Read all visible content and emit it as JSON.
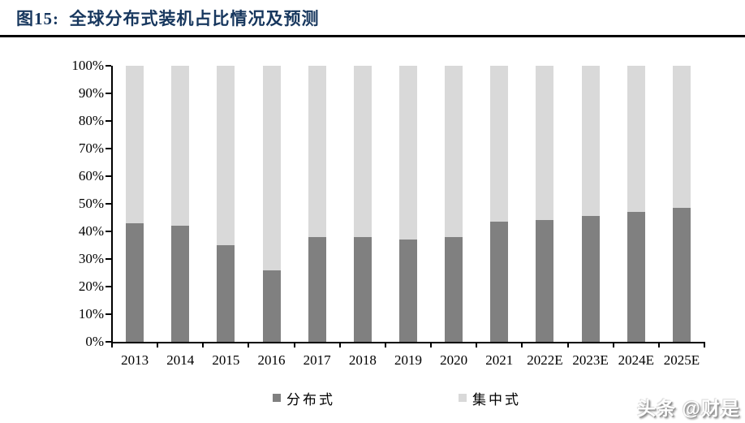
{
  "header": {
    "title": "图15:  全球分布式装机占比情况及预测"
  },
  "chart_data": {
    "type": "bar",
    "subtype": "stacked-100-percent",
    "title": "全球分布式装机占比情况及预测",
    "categories": [
      "2013",
      "2014",
      "2015",
      "2016",
      "2017",
      "2018",
      "2019",
      "2020",
      "2021",
      "2022E",
      "2023E",
      "2024E",
      "2025E"
    ],
    "series": [
      {
        "key": "distributed",
        "name": "分布式",
        "color": "#808080",
        "values": [
          43,
          42,
          35,
          26,
          38,
          38,
          37,
          38,
          43.5,
          44,
          45.5,
          47,
          48.5
        ]
      },
      {
        "key": "centralized",
        "name": "集中式",
        "color": "#d9d9d9",
        "values": [
          57,
          58,
          65,
          74,
          62,
          62,
          63,
          62,
          56.5,
          56,
          54.5,
          53,
          51.5
        ]
      }
    ],
    "xlabel": "",
    "ylabel": "",
    "ylim": [
      0,
      100
    ],
    "ytick_step": 10,
    "ytick_labels": [
      "0%",
      "10%",
      "20%",
      "30%",
      "40%",
      "50%",
      "60%",
      "70%",
      "80%",
      "90%",
      "100%"
    ],
    "grid": false,
    "legend_position": "bottom"
  },
  "watermark": {
    "text": "头条 @财是"
  },
  "colors": {
    "title": "#17375e",
    "axis": "#000000",
    "distributed_bar": "#808080",
    "centralized_bar": "#d9d9d9",
    "rule": "#000000",
    "background": "#ffffff"
  }
}
